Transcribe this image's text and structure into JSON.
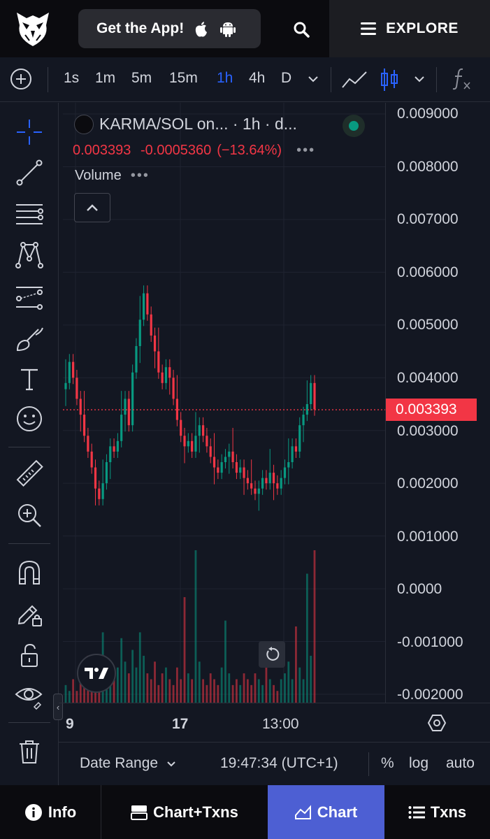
{
  "header": {
    "get_app_label": "Get the App!",
    "explore_label": "EXPLORE"
  },
  "toolbar": {
    "intervals": [
      "1s",
      "1m",
      "5m",
      "15m",
      "1h",
      "4h",
      "D"
    ],
    "active_interval": "1h"
  },
  "legend": {
    "title": "KARMA/SOL on... · 1h · d...",
    "ohlc": {
      "close": "0.003393",
      "change": "-0.0005360",
      "change_pct": "(−13.64%)"
    },
    "volume_label": "Volume"
  },
  "price_axis": {
    "labels": [
      "0.009000",
      "0.008000",
      "0.007000",
      "0.006000",
      "0.005000",
      "0.004000",
      "0.003000",
      "0.002000",
      "0.001000",
      "0.0000",
      "-0.001000",
      "-0.002000"
    ],
    "current_price": "0.003393",
    "current_price_color": "#f23645"
  },
  "time_axis": {
    "labels": [
      "9",
      "17",
      "13:00"
    ]
  },
  "bottom_bar": {
    "date_range_label": "Date Range",
    "clock": "19:47:34 (UTC+1)",
    "percent_label": "%",
    "log_label": "log",
    "auto_label": "auto"
  },
  "nav": {
    "items": [
      {
        "label": "Info",
        "icon": "info-icon"
      },
      {
        "label": "Chart+Txns",
        "icon": "split-view-icon"
      },
      {
        "label": "Chart",
        "icon": "area-chart-icon",
        "active": true
      },
      {
        "label": "Txns",
        "icon": "list-icon"
      }
    ]
  },
  "colors": {
    "up": "#089981",
    "down": "#f23645",
    "accent": "#2962ff",
    "active_nav": "#4d5fd3"
  },
  "chart_data": {
    "type": "candlestick",
    "title": "KARMA/SOL on... · 1h · d...",
    "interval": "1h",
    "ylim": [
      -0.002,
      0.009
    ],
    "x_ticks": [
      "9",
      "17",
      "13:00"
    ],
    "current_price": 0.003393,
    "change": -0.000536,
    "change_pct": -13.64,
    "series": [
      {
        "name": "price",
        "values": [
          0.0039,
          0.0043,
          0.004,
          0.0036,
          0.0033,
          0.0029,
          0.0026,
          0.0023,
          0.0019,
          0.0017,
          0.002,
          0.0024,
          0.0027,
          0.0026,
          0.0028,
          0.0033,
          0.0036,
          0.0031,
          0.0041,
          0.0046,
          0.0051,
          0.0056,
          0.0052,
          0.0048,
          0.0045,
          0.0041,
          0.0039,
          0.0042,
          0.004,
          0.0036,
          0.0032,
          0.0029,
          0.0027,
          0.0028,
          0.0026,
          0.0029,
          0.0031,
          0.0029,
          0.0027,
          0.0025,
          0.0023,
          0.0022,
          0.0024,
          0.0025,
          0.0026,
          0.0024,
          0.0022,
          0.0023,
          0.0021,
          0.002,
          0.0019,
          0.0018,
          0.0019,
          0.0021,
          0.002,
          0.0022,
          0.002,
          0.0019,
          0.0021,
          0.0023,
          0.0024,
          0.0027,
          0.0026,
          0.0031,
          0.0033,
          0.0035,
          0.0039,
          0.0034
        ]
      },
      {
        "name": "Volume",
        "values": [
          3,
          2,
          4,
          2,
          5,
          3,
          8,
          6,
          4,
          3,
          12,
          6,
          5,
          4,
          6,
          11,
          7,
          5,
          9,
          6,
          12,
          8,
          5,
          4,
          7,
          3,
          5,
          6,
          4,
          3,
          6,
          4,
          18,
          5,
          4,
          26,
          7,
          4,
          3,
          5,
          4,
          3,
          6,
          14,
          5,
          3,
          4,
          3,
          5,
          4,
          3,
          5,
          4,
          3,
          6,
          4,
          3,
          2,
          4,
          5,
          7,
          4,
          13,
          6,
          4,
          22,
          8,
          26
        ]
      }
    ]
  }
}
